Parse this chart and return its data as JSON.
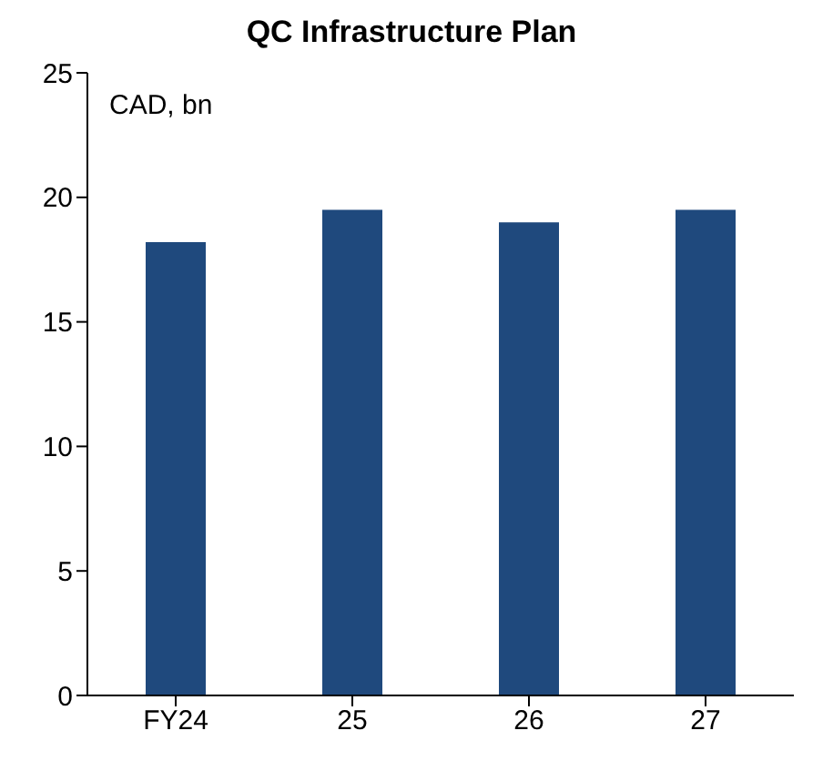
{
  "chart_data": {
    "type": "bar",
    "title": "QC Infrastructure Plan",
    "ylabel": "CAD, bn",
    "categories": [
      "FY24",
      "25",
      "26",
      "27"
    ],
    "values": [
      18.2,
      19.5,
      19.0,
      19.5
    ],
    "color": "#1f497d",
    "ylim": [
      0,
      25
    ],
    "yticks": [
      0,
      5,
      10,
      15,
      20,
      25
    ],
    "grid": false,
    "legend": false
  }
}
